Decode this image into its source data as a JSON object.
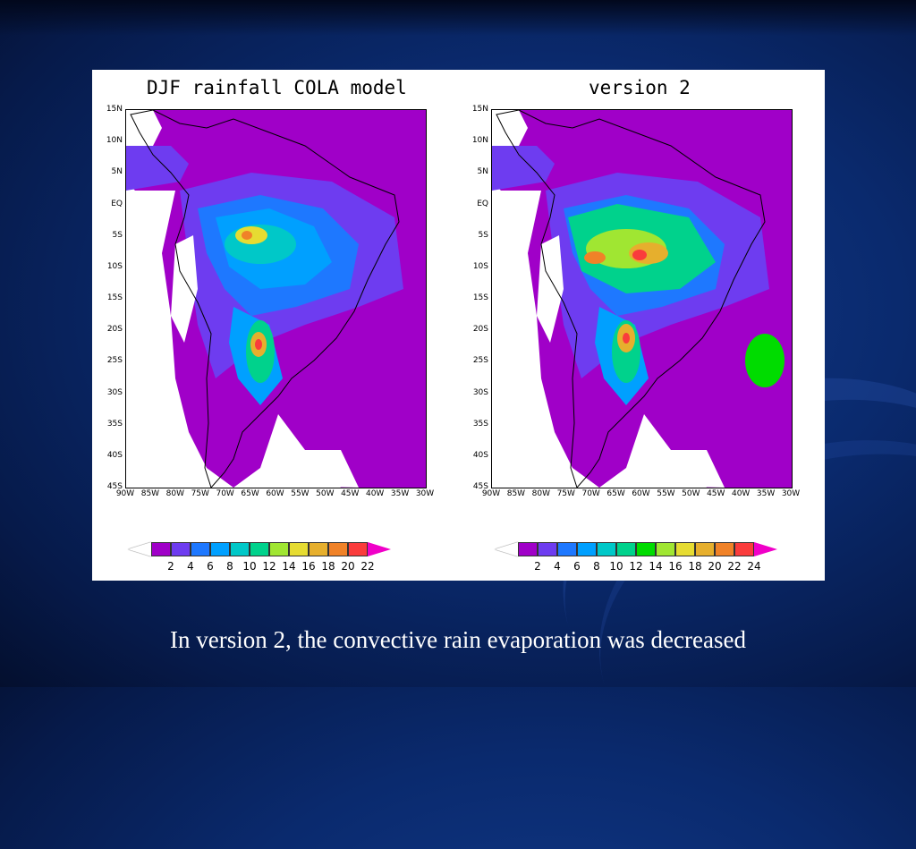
{
  "slide": {
    "caption": "In version 2, the convective rain evaporation was decreased"
  },
  "panels": [
    {
      "title": "DJF rainfall COLA model",
      "y_ticks": [
        "15N",
        "10N",
        "5N",
        "EQ",
        "5S",
        "10S",
        "15S",
        "20S",
        "25S",
        "30S",
        "35S",
        "40S",
        "45S"
      ],
      "x_ticks": [
        "90W",
        "85W",
        "80W",
        "75W",
        "70W",
        "65W",
        "60W",
        "55W",
        "50W",
        "45W",
        "40W",
        "35W",
        "30W"
      ],
      "colorbar_labels": [
        "2",
        "4",
        "6",
        "8",
        "10",
        "12",
        "14",
        "16",
        "18",
        "20",
        "22"
      ],
      "colorbar_colors": [
        "#a000c8",
        "#6e3cf0",
        "#1e78ff",
        "#00a0ff",
        "#00c8c8",
        "#00d28c",
        "#a0e632",
        "#e6dc32",
        "#e6af2d",
        "#f08228",
        "#fa3c3c"
      ],
      "over_color": "#f000c8"
    },
    {
      "title": "version 2",
      "y_ticks": [
        "15N",
        "10N",
        "5N",
        "EQ",
        "5S",
        "10S",
        "15S",
        "20S",
        "25S",
        "30S",
        "35S",
        "40S",
        "45S"
      ],
      "x_ticks": [
        "90W",
        "85W",
        "80W",
        "75W",
        "70W",
        "65W",
        "60W",
        "55W",
        "50W",
        "45W",
        "40W",
        "35W",
        "30W"
      ],
      "colorbar_labels": [
        "2",
        "4",
        "6",
        "8",
        "10",
        "12",
        "14",
        "16",
        "18",
        "20",
        "22",
        "24"
      ],
      "colorbar_colors": [
        "#a000c8",
        "#6e3cf0",
        "#1e78ff",
        "#00a0ff",
        "#00c8c8",
        "#00d28c",
        "#00dc00",
        "#a0e632",
        "#e6dc32",
        "#e6af2d",
        "#f08228",
        "#fa3c3c"
      ],
      "over_color": "#f000c8"
    }
  ]
}
